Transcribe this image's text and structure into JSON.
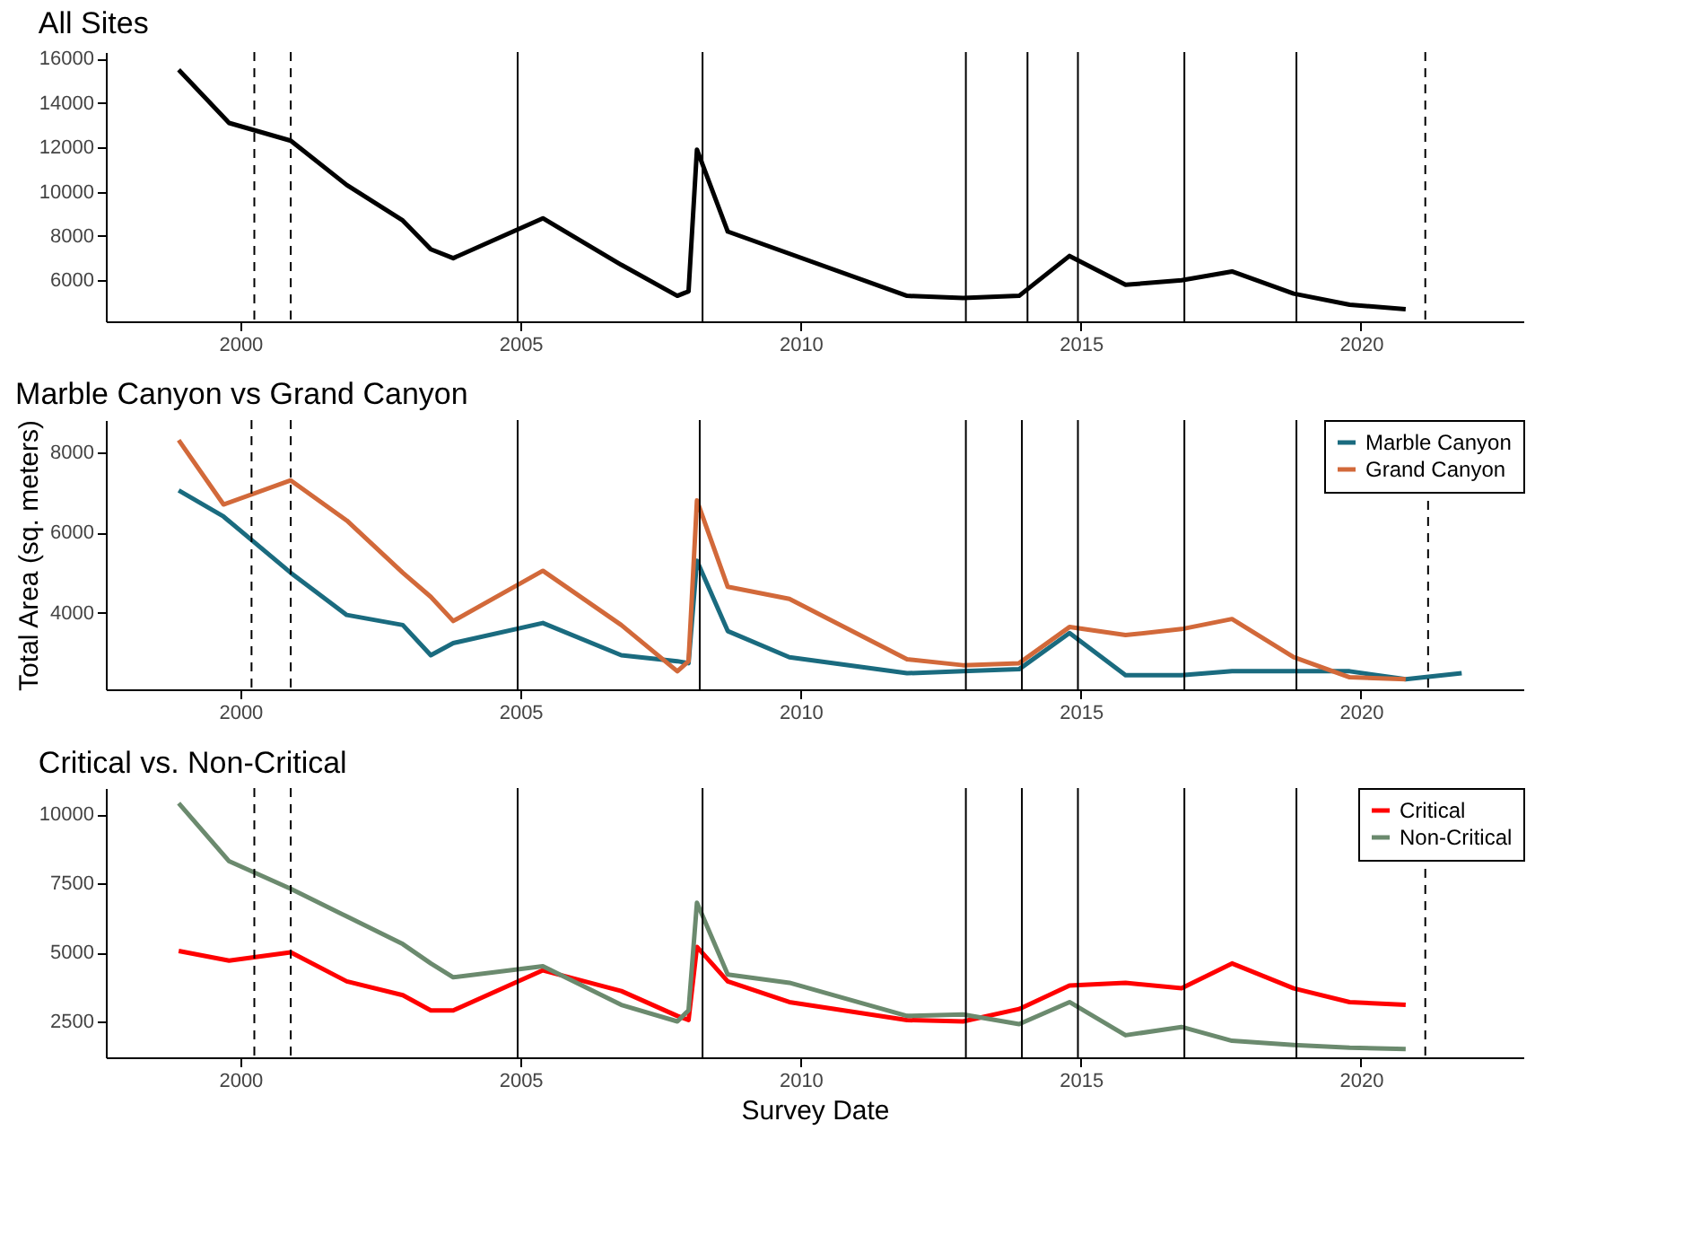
{
  "chart_data": [
    {
      "type": "line",
      "title": "All Sites",
      "xlim": [
        1997.6,
        2022.9
      ],
      "xticks": [
        2000,
        2005,
        2010,
        2015,
        2020
      ],
      "ylim": [
        4150,
        16300
      ],
      "yticks": [
        6000,
        8000,
        10000,
        12000,
        14000,
        16000
      ],
      "grid": false,
      "legend": false,
      "series": [
        {
          "color": "#000000",
          "x": [
            1998.9,
            1999.8,
            2000.9,
            2001.9,
            2002.9,
            2003.4,
            2003.8,
            2005.4,
            2006.8,
            2007.8,
            2008.0,
            2008.15,
            2008.7,
            2011.9,
            2012.9,
            2013.9,
            2014.8,
            2015.8,
            2016.8,
            2017.7,
            2018.8,
            2019.8,
            2020.8
          ],
          "values": [
            15500,
            13100,
            12300,
            10300,
            8700,
            7400,
            7000,
            8800,
            6700,
            5300,
            5500,
            11900,
            8200,
            5300,
            5200,
            5300,
            7100,
            5800,
            6000,
            6400,
            5400,
            4900,
            4700
          ]
        }
      ],
      "ref_lines": [
        {
          "axis": "x",
          "value": 2000.25,
          "line_style": "dashed",
          "color": "#000000"
        },
        {
          "axis": "x",
          "value": 2000.9,
          "line_style": "dashed",
          "color": "#000000"
        },
        {
          "axis": "x",
          "value": 2004.95,
          "line_style": "solid",
          "color": "#000000"
        },
        {
          "axis": "x",
          "value": 2008.25,
          "line_style": "solid",
          "color": "#000000"
        },
        {
          "axis": "x",
          "value": 2012.95,
          "line_style": "solid",
          "color": "#000000"
        },
        {
          "axis": "x",
          "value": 2014.05,
          "line_style": "solid",
          "color": "#000000"
        },
        {
          "axis": "x",
          "value": 2014.95,
          "line_style": "solid",
          "color": "#000000"
        },
        {
          "axis": "x",
          "value": 2016.85,
          "line_style": "solid",
          "color": "#000000"
        },
        {
          "axis": "x",
          "value": 2018.85,
          "line_style": "solid",
          "color": "#000000"
        },
        {
          "axis": "x",
          "value": 2021.15,
          "line_style": "dashed",
          "color": "#000000"
        }
      ]
    },
    {
      "type": "line",
      "title": "Marble Canyon vs Grand Canyon",
      "ylabel": "Total Area (sq. meters)",
      "xlim": [
        1997.6,
        2022.9
      ],
      "xticks": [
        2000,
        2005,
        2010,
        2015,
        2020
      ],
      "ylim": [
        2100,
        8800
      ],
      "yticks": [
        4000,
        6000,
        8000
      ],
      "grid": false,
      "legend": "top right",
      "series": [
        {
          "name": "Marble Canyon",
          "color": "#1a6b7f",
          "x": [
            1998.9,
            1999.7,
            2000.9,
            2001.9,
            2002.9,
            2003.4,
            2003.8,
            2005.4,
            2006.8,
            2007.8,
            2008.0,
            2008.15,
            2008.7,
            2009.8,
            2011.9,
            2012.9,
            2013.9,
            2014.8,
            2015.8,
            2016.8,
            2017.7,
            2018.8,
            2019.8,
            2020.8,
            2021.8
          ],
          "values": [
            7050,
            6400,
            5000,
            3950,
            3700,
            2950,
            3250,
            3750,
            2950,
            2800,
            2750,
            5300,
            3550,
            2900,
            2500,
            2550,
            2600,
            3500,
            2450,
            2450,
            2550,
            2550,
            2550,
            2350,
            2500
          ]
        },
        {
          "name": "Grand Canyon",
          "color": "#d2693a",
          "x": [
            1998.9,
            1999.7,
            2000.9,
            2001.9,
            2002.9,
            2003.4,
            2003.8,
            2005.4,
            2006.8,
            2007.8,
            2008.0,
            2008.15,
            2008.7,
            2009.8,
            2011.9,
            2012.9,
            2013.9,
            2014.8,
            2015.8,
            2016.8,
            2017.7,
            2018.8,
            2019.8,
            2020.8
          ],
          "values": [
            8300,
            6700,
            7300,
            6300,
            5000,
            4400,
            3800,
            5050,
            3700,
            2550,
            2800,
            6800,
            4650,
            4350,
            2850,
            2700,
            2750,
            3650,
            3450,
            3600,
            3850,
            2900,
            2400,
            2350
          ]
        }
      ],
      "ref_lines": [
        {
          "axis": "x",
          "value": 2000.2,
          "line_style": "dashed",
          "color": "#000000"
        },
        {
          "axis": "x",
          "value": 2000.9,
          "line_style": "dashed",
          "color": "#000000"
        },
        {
          "axis": "x",
          "value": 2004.95,
          "line_style": "solid",
          "color": "#000000"
        },
        {
          "axis": "x",
          "value": 2008.2,
          "line_style": "solid",
          "color": "#000000"
        },
        {
          "axis": "x",
          "value": 2012.95,
          "line_style": "solid",
          "color": "#000000"
        },
        {
          "axis": "x",
          "value": 2013.95,
          "line_style": "solid",
          "color": "#000000"
        },
        {
          "axis": "x",
          "value": 2014.95,
          "line_style": "solid",
          "color": "#000000"
        },
        {
          "axis": "x",
          "value": 2016.85,
          "line_style": "solid",
          "color": "#000000"
        },
        {
          "axis": "x",
          "value": 2018.85,
          "line_style": "solid",
          "color": "#000000"
        },
        {
          "axis": "x",
          "value": 2021.2,
          "line_style": "dashed",
          "color": "#000000"
        }
      ]
    },
    {
      "type": "line",
      "title": "Critical vs. Non-Critical",
      "xlabel": "Survey Date",
      "xlim": [
        1997.6,
        2022.9
      ],
      "xticks": [
        2000,
        2005,
        2010,
        2015,
        2020
      ],
      "ylim": [
        1200,
        10950
      ],
      "yticks": [
        2500,
        5000,
        7500,
        10000
      ],
      "grid": false,
      "legend": "top right",
      "series": [
        {
          "name": "Critical",
          "color": "#ff0000",
          "x": [
            1998.9,
            1999.8,
            2000.9,
            2001.9,
            2002.9,
            2003.4,
            2003.8,
            2005.4,
            2006.8,
            2007.8,
            2008.0,
            2008.15,
            2008.7,
            2009.8,
            2011.9,
            2012.9,
            2013.9,
            2014.8,
            2015.8,
            2016.8,
            2017.7,
            2018.8,
            2019.8,
            2020.8
          ],
          "values": [
            5050,
            4700,
            5000,
            3950,
            3450,
            2900,
            2900,
            4350,
            3600,
            2700,
            2550,
            5200,
            3950,
            3200,
            2550,
            2500,
            2950,
            3800,
            3900,
            3700,
            4600,
            3700,
            3200,
            3100
          ]
        },
        {
          "name": "Non-Critical",
          "color": "#6b8a6e",
          "x": [
            1998.9,
            1999.8,
            2000.9,
            2001.9,
            2002.9,
            2003.4,
            2003.8,
            2005.4,
            2006.8,
            2007.8,
            2008.0,
            2008.15,
            2008.7,
            2009.8,
            2011.9,
            2012.9,
            2013.9,
            2014.8,
            2015.8,
            2016.8,
            2017.7,
            2018.8,
            2019.8,
            2020.8
          ],
          "values": [
            10400,
            8300,
            7300,
            6300,
            5300,
            4600,
            4100,
            4500,
            3100,
            2500,
            2900,
            6800,
            4200,
            3900,
            2700,
            2750,
            2400,
            3200,
            2000,
            2300,
            1800,
            1650,
            1550,
            1500
          ]
        }
      ],
      "ref_lines": [
        {
          "axis": "x",
          "value": 2000.25,
          "line_style": "dashed",
          "color": "#000000"
        },
        {
          "axis": "x",
          "value": 2000.9,
          "line_style": "dashed",
          "color": "#000000"
        },
        {
          "axis": "x",
          "value": 2004.95,
          "line_style": "solid",
          "color": "#000000"
        },
        {
          "axis": "x",
          "value": 2008.25,
          "line_style": "solid",
          "color": "#000000"
        },
        {
          "axis": "x",
          "value": 2012.95,
          "line_style": "solid",
          "color": "#000000"
        },
        {
          "axis": "x",
          "value": 2013.95,
          "line_style": "solid",
          "color": "#000000"
        },
        {
          "axis": "x",
          "value": 2014.95,
          "line_style": "solid",
          "color": "#000000"
        },
        {
          "axis": "x",
          "value": 2016.85,
          "line_style": "solid",
          "color": "#000000"
        },
        {
          "axis": "x",
          "value": 2018.85,
          "line_style": "solid",
          "color": "#000000"
        },
        {
          "axis": "x",
          "value": 2021.15,
          "line_style": "dashed",
          "color": "#000000"
        }
      ]
    }
  ]
}
